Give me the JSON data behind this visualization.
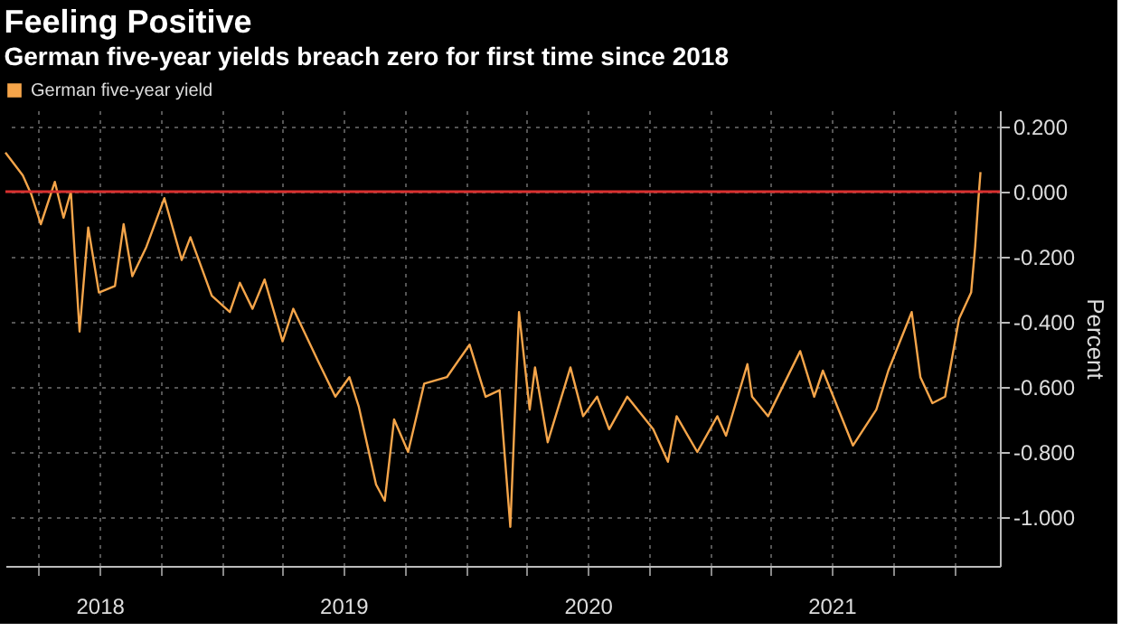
{
  "chart_data": {
    "type": "line",
    "title": "Feeling Positive",
    "subtitle": "German five-year yields breach zero for first time since 2018",
    "ylabel": "Percent",
    "x": [
      "2018-02-10",
      "2018-03-08",
      "2018-03-21",
      "2018-04-04",
      "2018-04-25",
      "2018-05-08",
      "2018-05-19",
      "2018-06-01",
      "2018-06-14",
      "2018-06-30",
      "2018-07-24",
      "2018-08-06",
      "2018-08-19",
      "2018-09-09",
      "2018-10-06",
      "2018-11-01",
      "2018-11-14",
      "2018-12-16",
      "2019-01-12",
      "2019-01-27",
      "2019-02-15",
      "2019-03-05",
      "2019-04-01",
      "2019-04-17",
      "2019-05-24",
      "2019-06-19",
      "2019-07-10",
      "2019-07-24",
      "2019-08-19",
      "2019-09-01",
      "2019-09-15",
      "2019-10-06",
      "2019-10-30",
      "2019-12-03",
      "2020-01-06",
      "2020-01-30",
      "2020-02-20",
      "2020-03-07",
      "2020-03-20",
      "2020-04-05",
      "2020-04-13",
      "2020-05-02",
      "2020-06-05",
      "2020-06-24",
      "2020-07-15",
      "2020-08-02",
      "2020-08-29",
      "2020-10-07",
      "2020-10-29",
      "2020-11-11",
      "2020-12-12",
      "2021-01-11",
      "2021-01-24",
      "2021-02-25",
      "2021-03-04",
      "2021-03-28",
      "2021-05-15",
      "2021-06-05",
      "2021-06-18",
      "2021-08-02",
      "2021-09-06",
      "2021-09-24",
      "2021-10-29",
      "2021-11-11",
      "2021-11-29",
      "2021-12-18",
      "2022-01-08",
      "2022-01-26",
      "2022-02-01",
      "2022-02-06",
      "2022-02-09"
    ],
    "series": [
      {
        "name": "German five-year yield",
        "color": "#f5a54a",
        "values": [
          0.12,
          0.05,
          -0.01,
          -0.1,
          0.03,
          -0.08,
          0.0,
          -0.43,
          -0.11,
          -0.31,
          -0.29,
          -0.1,
          -0.26,
          -0.17,
          -0.02,
          -0.21,
          -0.14,
          -0.32,
          -0.37,
          -0.28,
          -0.36,
          -0.27,
          -0.46,
          -0.36,
          -0.52,
          -0.63,
          -0.57,
          -0.66,
          -0.9,
          -0.95,
          -0.7,
          -0.8,
          -0.59,
          -0.57,
          -0.47,
          -0.63,
          -0.61,
          -1.03,
          -0.37,
          -0.67,
          -0.54,
          -0.77,
          -0.54,
          -0.69,
          -0.63,
          -0.73,
          -0.63,
          -0.73,
          -0.83,
          -0.69,
          -0.8,
          -0.69,
          -0.75,
          -0.53,
          -0.63,
          -0.69,
          -0.49,
          -0.63,
          -0.55,
          -0.78,
          -0.67,
          -0.55,
          -0.37,
          -0.57,
          -0.65,
          -0.63,
          -0.39,
          -0.31,
          -0.17,
          -0.02,
          0.06
        ]
      }
    ],
    "xlim": [
      "2018-02-10",
      "2022-03-10"
    ],
    "xticks": [
      {
        "value": "2018-04-01",
        "label": null
      },
      {
        "value": "2018-07-01",
        "label": "2018"
      },
      {
        "value": "2018-10-01",
        "label": null
      },
      {
        "value": "2019-01-01",
        "label": null
      },
      {
        "value": "2019-04-01",
        "label": null
      },
      {
        "value": "2019-07-01",
        "label": "2019"
      },
      {
        "value": "2019-10-01",
        "label": null
      },
      {
        "value": "2020-01-01",
        "label": null
      },
      {
        "value": "2020-04-01",
        "label": null
      },
      {
        "value": "2020-07-01",
        "label": "2020"
      },
      {
        "value": "2020-10-01",
        "label": null
      },
      {
        "value": "2021-01-01",
        "label": null
      },
      {
        "value": "2021-04-01",
        "label": null
      },
      {
        "value": "2021-07-01",
        "label": "2021"
      },
      {
        "value": "2021-10-01",
        "label": null
      },
      {
        "value": "2022-01-01",
        "label": null
      }
    ],
    "ylim": [
      -1.15,
      0.25
    ],
    "yticks": [
      {
        "value": -1.0,
        "label": "-1.000"
      },
      {
        "value": -0.8,
        "label": "-0.800"
      },
      {
        "value": -0.6,
        "label": "-0.600"
      },
      {
        "value": -0.4,
        "label": "-0.400"
      },
      {
        "value": -0.2,
        "label": "-0.200"
      },
      {
        "value": 0.0,
        "label": "0.000"
      },
      {
        "value": 0.2,
        "label": "0.200"
      }
    ],
    "ref_lines": [
      {
        "axis": "y",
        "value": 0.0,
        "color": "#d8302f"
      }
    ],
    "grid": true,
    "legend": "top left",
    "line_style": "solid",
    "marker": "none"
  }
}
